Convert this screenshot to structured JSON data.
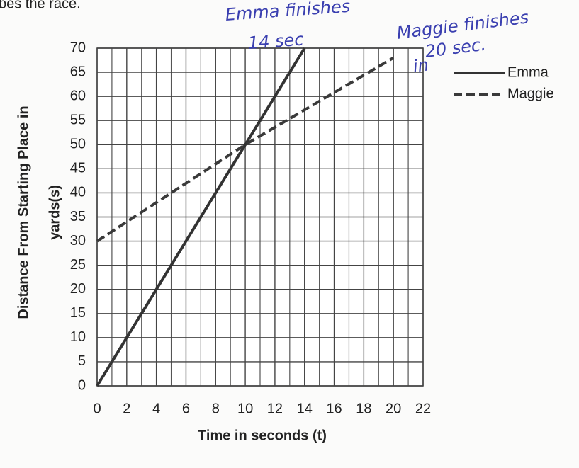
{
  "header_text": "bes the race.",
  "chart_data": {
    "type": "line",
    "xlabel": "Time in seconds (t)",
    "ylabel_lines": [
      "Distance From Starting Place in",
      "yards(s)"
    ],
    "xlim": [
      0,
      22
    ],
    "xticks": [
      0,
      2,
      4,
      6,
      8,
      10,
      12,
      14,
      16,
      18,
      20,
      22
    ],
    "xminor": [
      1,
      3,
      5,
      7,
      9,
      11,
      13,
      15,
      17,
      19,
      21
    ],
    "ylim": [
      0,
      70
    ],
    "yticks": [
      0,
      5,
      10,
      15,
      20,
      25,
      30,
      35,
      40,
      45,
      50,
      55,
      60,
      65,
      70
    ],
    "grid": true,
    "legend": "top-right",
    "series": [
      {
        "name": "Emma",
        "color": "#333333",
        "dash": false,
        "x": [
          0,
          14
        ],
        "values": [
          0,
          70
        ]
      },
      {
        "name": "Maggie",
        "color": "#3a3a3a",
        "dash": true,
        "x": [
          0,
          10,
          20
        ],
        "values": [
          30,
          50,
          68
        ]
      }
    ],
    "annotations": [
      "Emma finishes",
      "14 sec",
      "Maggie finishes",
      "in",
      "20 sec."
    ]
  }
}
